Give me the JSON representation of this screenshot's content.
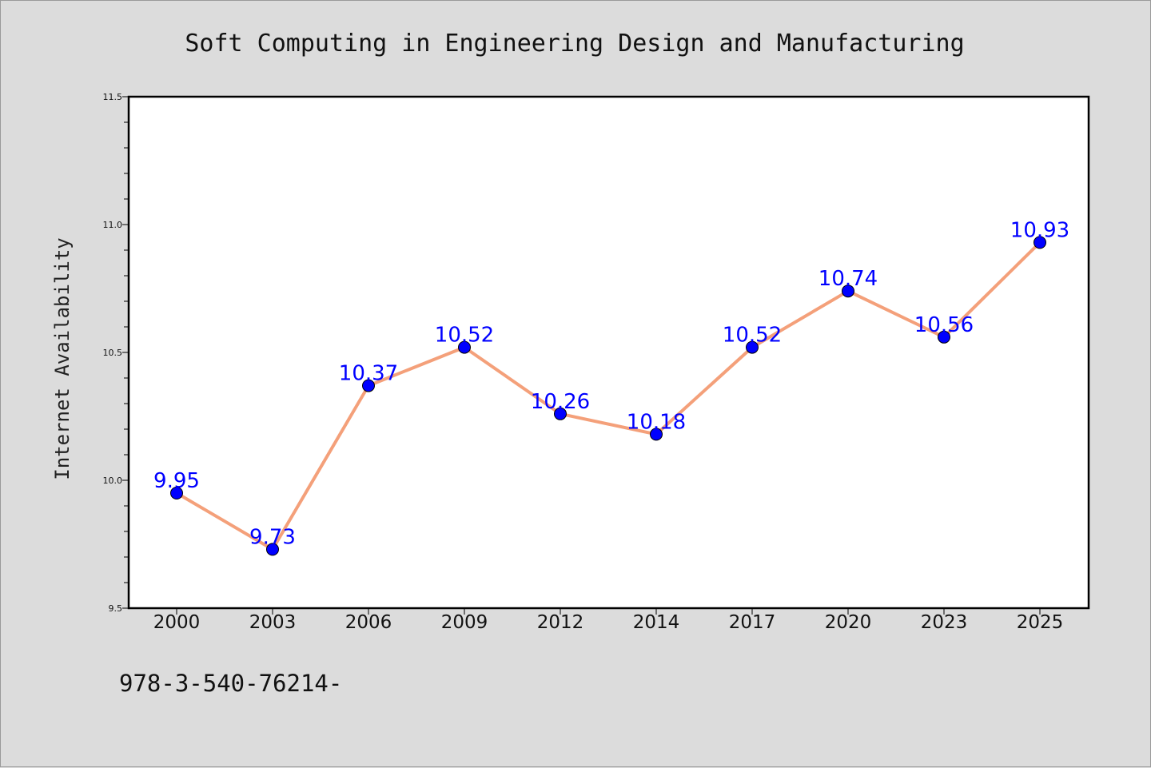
{
  "chart_data": {
    "type": "line",
    "title": "Soft Computing in Engineering Design and Manufacturing",
    "xlabel": "",
    "ylabel": "Internet Availability",
    "categories": [
      "2000",
      "2003",
      "2006",
      "2009",
      "2012",
      "2014",
      "2017",
      "2020",
      "2023",
      "2025"
    ],
    "series": [
      {
        "values": [
          9.95,
          9.73,
          10.37,
          10.52,
          10.26,
          10.18,
          10.52,
          10.74,
          10.56,
          10.93
        ],
        "data_labels": [
          "9.95",
          "9.73",
          "10.37",
          "10.52",
          "10.26",
          "10.18",
          "10.52",
          "10.74",
          "10.56",
          "10.93"
        ]
      }
    ],
    "yticks": [
      "9.5",
      "10.0",
      "10.5",
      "11.0",
      "11.5"
    ],
    "ylim": [
      9.5,
      11.5
    ],
    "grid": false,
    "legend": "none",
    "footer": "978-3-540-76214-",
    "colors": {
      "background": "#dcdcdc",
      "plot_background": "#ffffff",
      "line": "#f4a07a",
      "marker": "#0000ff",
      "label": "#0000ff"
    }
  }
}
